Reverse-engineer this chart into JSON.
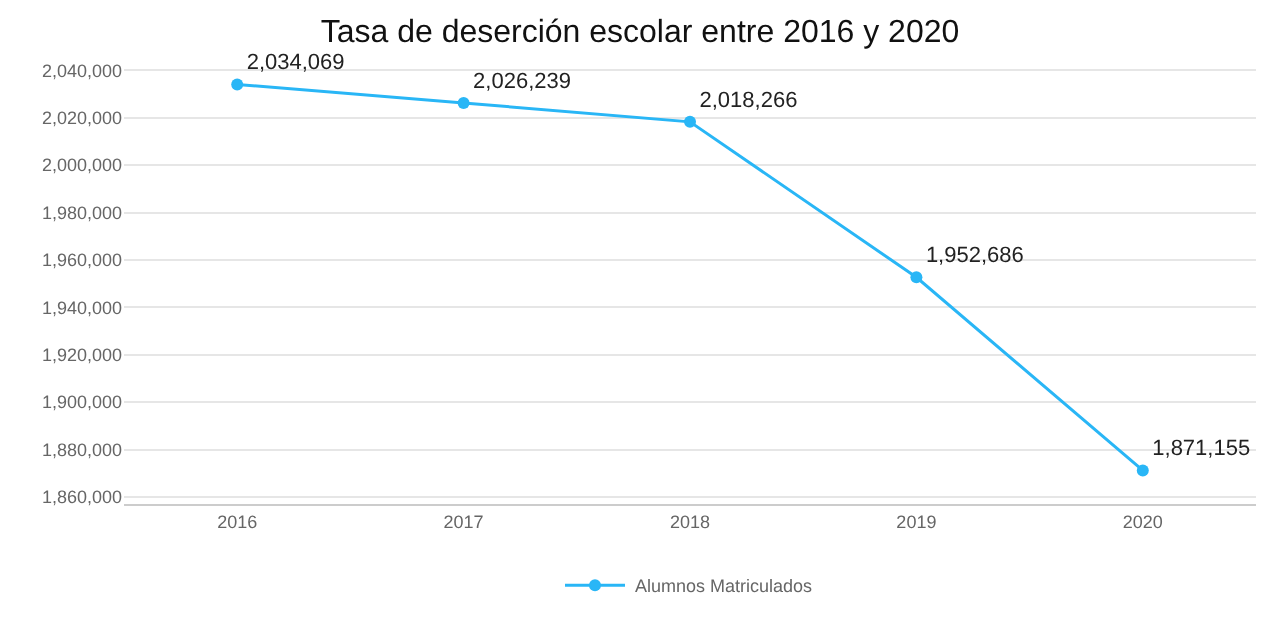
{
  "chart_data": {
    "type": "line",
    "title": "Tasa de deserción escolar entre 2016 y 2020",
    "categories": [
      "2016",
      "2017",
      "2018",
      "2019",
      "2020"
    ],
    "series": [
      {
        "name": "Alumnos Matriculados",
        "color": "#29b6f6",
        "values": [
          2034069,
          2026239,
          2018266,
          1952686,
          1871155
        ],
        "value_labels": [
          "2,034,069",
          "2,026,239",
          "2,018,266",
          "1,952,686",
          "1,871,155"
        ]
      }
    ],
    "ylim": [
      1857000,
      2041000
    ],
    "yticks": [
      {
        "value": 1860000,
        "label": "1,860,000"
      },
      {
        "value": 1880000,
        "label": "1,880,000"
      },
      {
        "value": 1900000,
        "label": "1,900,000"
      },
      {
        "value": 1920000,
        "label": "1,920,000"
      },
      {
        "value": 1940000,
        "label": "1,940,000"
      },
      {
        "value": 1960000,
        "label": "1,960,000"
      },
      {
        "value": 1980000,
        "label": "1,980,000"
      },
      {
        "value": 2000000,
        "label": "2,000,000"
      },
      {
        "value": 2020000,
        "label": "2,020,000"
      },
      {
        "value": 2040000,
        "label": "2,040,000"
      }
    ],
    "grid": "y",
    "legend": "bottom",
    "marker": "circle",
    "line_style": "solid"
  }
}
